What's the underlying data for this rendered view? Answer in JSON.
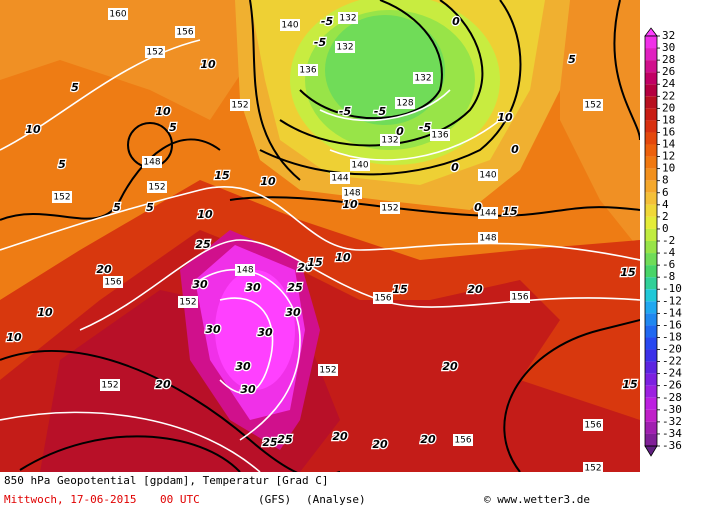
{
  "footer": {
    "title": "850 hPa Geopotential [gpdam], Temperatur [Grad C]",
    "date": "Mittwoch, 17-06-2015",
    "time": "00 UTC",
    "model": "(GFS)",
    "run": "(Analyse)",
    "copyright": "© www.wetter3.de"
  },
  "colorbar": {
    "levels": [
      32,
      30,
      28,
      26,
      24,
      22,
      20,
      18,
      16,
      14,
      12,
      10,
      8,
      6,
      4,
      2,
      0,
      -2,
      -4,
      -6,
      -8,
      -10,
      -12,
      -14,
      -16,
      -18,
      -20,
      -22,
      -24,
      -26,
      -28,
      -30,
      -32,
      -34,
      -36
    ],
    "colors": [
      "#ff40ff",
      "#f030e8",
      "#e020c0",
      "#d0108c",
      "#c00064",
      "#b40040",
      "#b81020",
      "#c81c14",
      "#d83010",
      "#e4480c",
      "#ec600c",
      "#f07810",
      "#f2901c",
      "#f4a82c",
      "#f4c038",
      "#f0d838",
      "#e4ec38",
      "#c0ec40",
      "#98e448",
      "#70dc58",
      "#48d468",
      "#30d098",
      "#20c8d8",
      "#20a8f0",
      "#2088f0",
      "#2068f0",
      "#2848f0",
      "#3c30e8",
      "#5c24e0",
      "#7c20e0",
      "#9c20e0",
      "#bc20e0",
      "#c020c8",
      "#a020b0",
      "#802098",
      "#602080"
    ]
  },
  "map_labels": {
    "temperature": [
      "10",
      "5",
      "5",
      "5",
      "5",
      "10",
      "10",
      "5",
      "10",
      "15",
      "10",
      "25",
      "20",
      "10",
      "10",
      "20",
      "30",
      "30",
      "30",
      "30",
      "30",
      "30",
      "25",
      "30",
      "20",
      "15",
      "10",
      "15",
      "20",
      "20",
      "20",
      "20",
      "25",
      "25",
      "20",
      "15",
      "15",
      "10",
      "5",
      "0",
      "15",
      "0",
      "10",
      "-5",
      "-5",
      "-5",
      "-5",
      "0",
      "0",
      "0",
      "-5"
    ],
    "geopotential": [
      "160",
      "152",
      "156",
      "152",
      "148",
      "152",
      "152",
      "156",
      "152",
      "148",
      "152",
      "152",
      "156",
      "156",
      "156",
      "156",
      "152",
      "152",
      "140",
      "144",
      "144",
      "148",
      "152",
      "148",
      "136",
      "140",
      "132",
      "128",
      "132",
      "132",
      "132",
      "140",
      "136"
    ]
  }
}
